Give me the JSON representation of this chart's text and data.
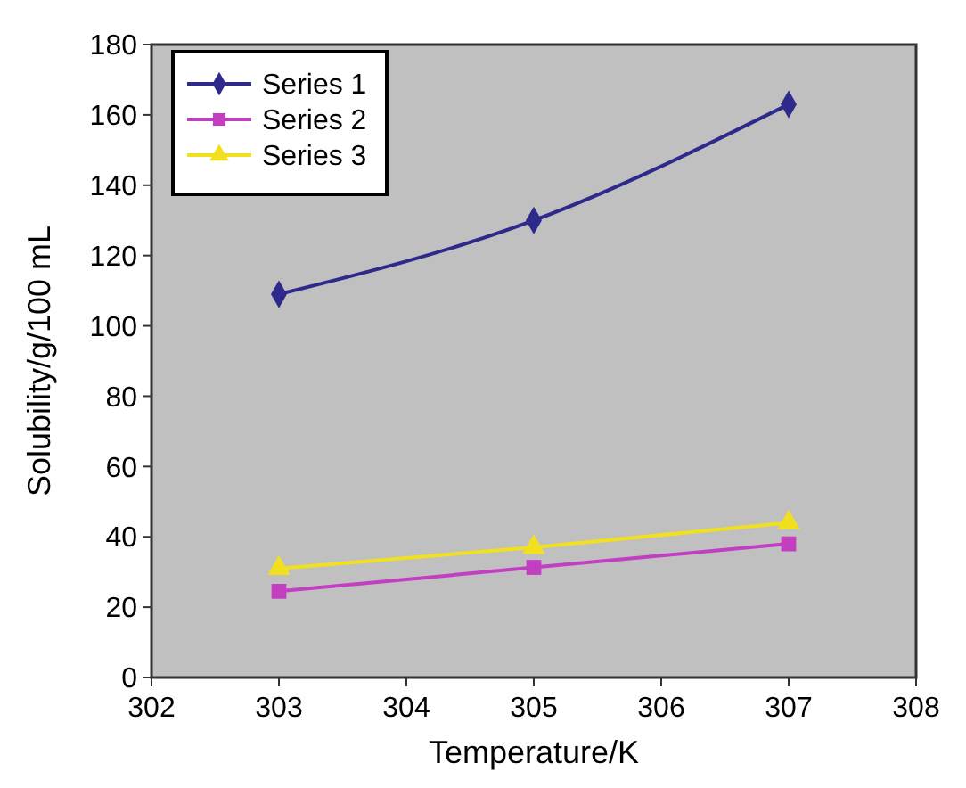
{
  "chart_data": {
    "type": "line",
    "xlabel": "Temperature/K",
    "ylabel": "Solubility/g/100 mL",
    "x": [
      303,
      305,
      307
    ],
    "series": [
      {
        "name": "Series 1",
        "color": "#2e2a8c",
        "values": [
          109,
          130,
          163
        ],
        "marker": "diamond"
      },
      {
        "name": "Series 2",
        "color": "#c23fc2",
        "values": [
          24.5,
          31.3,
          38
        ],
        "marker": "square"
      },
      {
        "name": "Series 3",
        "color": "#f0e020",
        "values": [
          31,
          37,
          44
        ],
        "marker": "triangle"
      }
    ],
    "xlim": [
      302,
      308
    ],
    "xticks": [
      302,
      303,
      304,
      305,
      306,
      307,
      308
    ],
    "ylim": [
      0,
      180
    ],
    "yticks": [
      0,
      20,
      40,
      60,
      80,
      100,
      120,
      140,
      160,
      180
    ],
    "grid": false,
    "legend": "top left"
  }
}
